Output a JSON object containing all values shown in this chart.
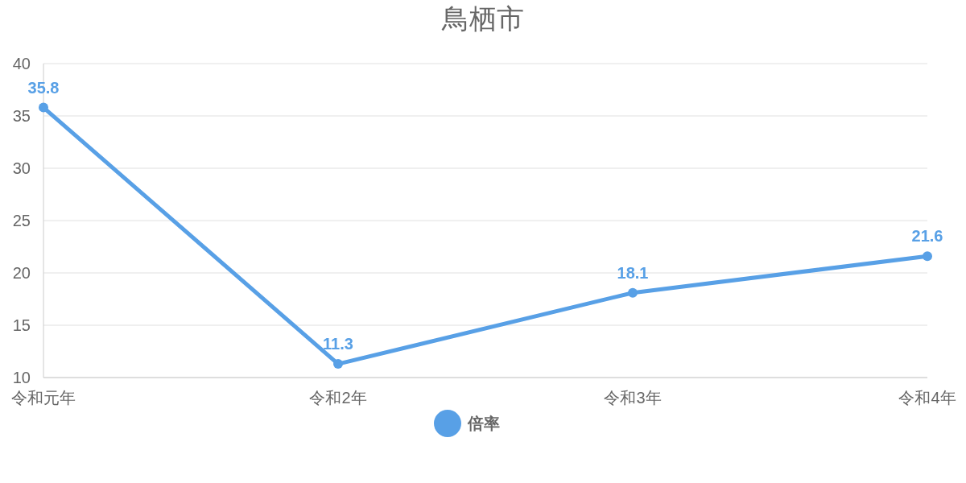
{
  "chart_data": {
    "type": "line",
    "title": "鳥栖市",
    "categories": [
      "令和元年",
      "令和2年",
      "令和3年",
      "令和4年"
    ],
    "series": [
      {
        "name": "倍率",
        "color": "#58a0e6",
        "values": [
          35.8,
          11.3,
          18.1,
          21.6
        ]
      }
    ],
    "ylim": [
      10,
      40
    ],
    "yticks": [
      10,
      15,
      20,
      25,
      30,
      35,
      40
    ],
    "grid": "y",
    "legend": "bottom",
    "marker": "circle",
    "data_labels": true
  }
}
